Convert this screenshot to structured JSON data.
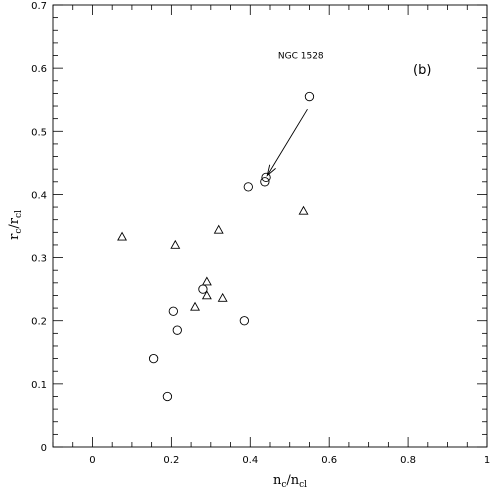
{
  "chart_data": {
    "type": "scatter",
    "panel_label": "(b)",
    "xlabel": {
      "main": "n",
      "sub_num": "c",
      "div": "/n",
      "sub_den": "cl"
    },
    "ylabel": {
      "main": "r",
      "sub_num": "c",
      "div": "/r",
      "sub_den": "cl"
    },
    "xlim": [
      -0.1,
      1.0
    ],
    "ylim": [
      0.0,
      0.7
    ],
    "x_ticks": [
      0,
      0.2,
      0.4,
      0.6,
      0.8,
      1
    ],
    "x_tick_labels": [
      "0",
      "0.2",
      "0.4",
      "0.6",
      "0.8",
      "1"
    ],
    "y_ticks": [
      0,
      0.1,
      0.2,
      0.3,
      0.4,
      0.5,
      0.6,
      0.7
    ],
    "y_tick_labels": [
      "0",
      "0.1",
      "0.2",
      "0.3",
      "0.4",
      "0.5",
      "0.6",
      "0.7"
    ],
    "grid": false,
    "series": [
      {
        "marker": "circle",
        "points": [
          {
            "x": 0.55,
            "y": 0.555
          },
          {
            "x": 0.395,
            "y": 0.412
          },
          {
            "x": 0.437,
            "y": 0.42
          },
          {
            "x": 0.44,
            "y": 0.427
          },
          {
            "x": 0.28,
            "y": 0.25
          },
          {
            "x": 0.205,
            "y": 0.215
          },
          {
            "x": 0.215,
            "y": 0.185
          },
          {
            "x": 0.385,
            "y": 0.2
          },
          {
            "x": 0.155,
            "y": 0.14
          },
          {
            "x": 0.19,
            "y": 0.08
          }
        ]
      },
      {
        "marker": "triangle",
        "points": [
          {
            "x": 0.075,
            "y": 0.333
          },
          {
            "x": 0.21,
            "y": 0.32
          },
          {
            "x": 0.32,
            "y": 0.344
          },
          {
            "x": 0.535,
            "y": 0.374
          },
          {
            "x": 0.29,
            "y": 0.262
          },
          {
            "x": 0.29,
            "y": 0.24
          },
          {
            "x": 0.26,
            "y": 0.222
          },
          {
            "x": 0.33,
            "y": 0.236
          }
        ]
      }
    ],
    "annotation": {
      "text": "NGC 1528",
      "text_x": 0.47,
      "text_y": 0.615,
      "arrow_from": {
        "x": 0.545,
        "y": 0.535
      },
      "arrow_to": {
        "x": 0.443,
        "y": 0.43
      }
    }
  }
}
